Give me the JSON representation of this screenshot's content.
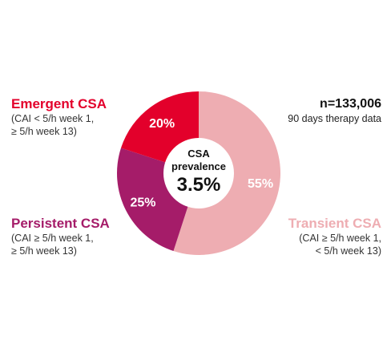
{
  "chart_data": {
    "type": "pie",
    "donut": true,
    "categories": [
      "Transient CSA",
      "Persistent CSA",
      "Emergent CSA"
    ],
    "values": [
      55,
      25,
      20
    ],
    "value_labels": [
      "55%",
      "25%",
      "20%"
    ],
    "colors": [
      "#eeadb2",
      "#a51c69",
      "#e3002b"
    ],
    "center": {
      "line1": "CSA",
      "line2": "prevalence",
      "value": "3.5%"
    },
    "annotations": {
      "emergent": {
        "title": "Emergent CSA",
        "line1": "(CAI < 5/h week 1,",
        "line2": "≥ 5/h week 13)"
      },
      "persistent": {
        "title": "Persistent CSA",
        "line1": "(CAI ≥ 5/h week 1,",
        "line2": "≥ 5/h week 13)"
      },
      "transient": {
        "title": "Transient CSA",
        "line1": "(CAI ≥ 5/h week 1,",
        "line2": "< 5/h week 13)"
      },
      "sample": {
        "title": "n=133,006",
        "line1": "90 days therapy data"
      }
    }
  }
}
